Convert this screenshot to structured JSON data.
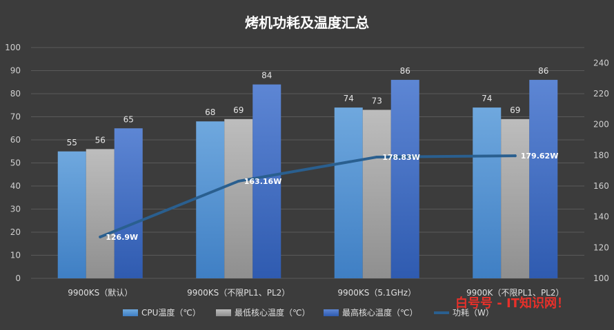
{
  "watermark": "白号号 - IT知识网！",
  "chart_data": {
    "type": "bar",
    "title": "烤机功耗及温度汇总",
    "categories": [
      "9900KS（默认）",
      "9900KS（不限PL1、PL2）",
      "9900KS（5.1GHz）",
      "9900K（不限PL1、PL2）"
    ],
    "series": [
      {
        "name": "CPU温度（℃）",
        "type": "bar",
        "axis": "left",
        "color": "#5b9ad6",
        "values": [
          55,
          68,
          74,
          74
        ]
      },
      {
        "name": "最低核心温度（℃）",
        "type": "bar",
        "axis": "left",
        "color": "#a6a6a6",
        "values": [
          56,
          69,
          73,
          69
        ]
      },
      {
        "name": "最高核心温度（℃）",
        "type": "bar",
        "axis": "left",
        "color": "#4a72c4",
        "values": [
          65,
          84,
          86,
          86
        ]
      },
      {
        "name": "功耗（W）",
        "type": "line",
        "axis": "right",
        "color": "#2a5f8f",
        "values": [
          126.9,
          163.16,
          178.83,
          179.62
        ],
        "labels": [
          "126.9W",
          "163.16W",
          "178.83W",
          "179.62W"
        ]
      }
    ],
    "y_left": {
      "min": 0,
      "max": 100,
      "ticks": [
        "0",
        "10",
        "20",
        "30",
        "40",
        "50",
        "60",
        "70",
        "80",
        "90",
        "100"
      ]
    },
    "y_right": {
      "min": 100,
      "max": 250,
      "ticks": [
        "100",
        "120",
        "140",
        "160",
        "180",
        "200",
        "220",
        "240"
      ]
    },
    "grid": true,
    "legend_position": "bottom"
  }
}
